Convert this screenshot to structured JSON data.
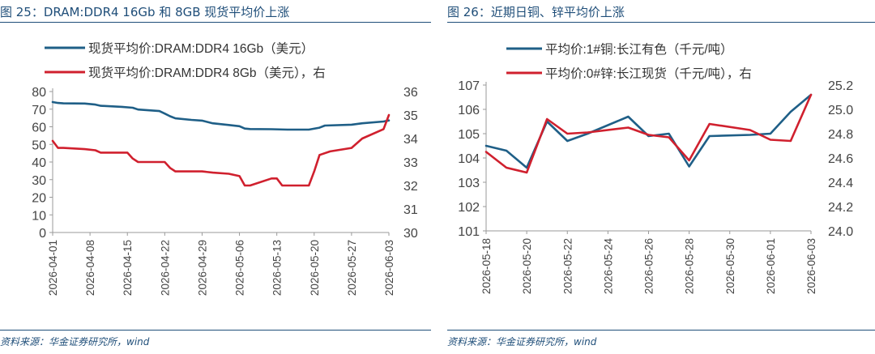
{
  "panel1": {
    "fig_title": "图 25：DRAM:DDR4 16Gb 和 8GB 现货平均价上涨",
    "source": "资料来源：华金证券研究所，wind"
  },
  "panel2": {
    "fig_title": "图 26：近期日铜、锌平均价上涨",
    "source": "资料来源：华金证券研究所，wind"
  },
  "colors": {
    "blue": "#1f5f87",
    "red": "#d0202e",
    "axis": "#9a9a9a",
    "title": "#1f4e79"
  },
  "chart_data": [
    {
      "type": "line",
      "title": "图 25：DRAM:DDR4 16Gb 和 8GB 现货平均价上涨",
      "legend_position": "top",
      "grid": false,
      "x_ticks": [
        "2026-04-01",
        "2026-04-08",
        "2026-04-15",
        "2026-04-22",
        "2026-04-29",
        "2026-05-06",
        "2026-05-13",
        "2026-05-20",
        "2026-05-27",
        "2026-06-03"
      ],
      "x_range": [
        "2026-04-01",
        "2026-06-03"
      ],
      "y_left": {
        "range": [
          0,
          80
        ],
        "ticks": [
          0,
          10,
          20,
          30,
          40,
          50,
          60,
          70,
          80
        ]
      },
      "y_right": {
        "range": [
          30,
          36
        ],
        "ticks": [
          30,
          31,
          32,
          33,
          34,
          35,
          36
        ]
      },
      "series": [
        {
          "name": "现货平均价:DRAM:DDR4 16Gb（美元）",
          "color": "#1f5f87",
          "axis": "left",
          "points": [
            [
              "2026-04-01",
              74
            ],
            [
              "2026-04-02",
              73.5
            ],
            [
              "2026-04-03",
              73.3
            ],
            [
              "2026-04-07",
              73.2
            ],
            [
              "2026-04-09",
              72.6
            ],
            [
              "2026-04-10",
              71.9
            ],
            [
              "2026-04-14",
              71.3
            ],
            [
              "2026-04-16",
              70.8
            ],
            [
              "2026-04-17",
              69.8
            ],
            [
              "2026-04-21",
              68.9
            ],
            [
              "2026-04-22",
              67.5
            ],
            [
              "2026-04-23",
              66.0
            ],
            [
              "2026-04-24",
              64.8
            ],
            [
              "2026-04-27",
              63.9
            ],
            [
              "2026-04-29",
              63.5
            ],
            [
              "2026-05-01",
              62.0
            ],
            [
              "2026-05-04",
              61.0
            ],
            [
              "2026-05-06",
              60.3
            ],
            [
              "2026-05-07",
              59.0
            ],
            [
              "2026-05-08",
              58.7
            ],
            [
              "2026-05-12",
              58.6
            ],
            [
              "2026-05-15",
              58.4
            ],
            [
              "2026-05-19",
              58.4
            ],
            [
              "2026-05-21",
              59.5
            ],
            [
              "2026-05-22",
              60.7
            ],
            [
              "2026-05-27",
              61.2
            ],
            [
              "2026-05-29",
              62.0
            ],
            [
              "2026-06-02",
              63.0
            ],
            [
              "2026-06-03",
              63.6
            ]
          ]
        },
        {
          "name": "现货平均价:DRAM:DDR4 8Gb（美元），右",
          "color": "#d0202e",
          "axis": "right",
          "points": [
            [
              "2026-04-01",
              33.9
            ],
            [
              "2026-04-02",
              33.6
            ],
            [
              "2026-04-03",
              33.6
            ],
            [
              "2026-04-07",
              33.55
            ],
            [
              "2026-04-09",
              33.5
            ],
            [
              "2026-04-10",
              33.4
            ],
            [
              "2026-04-14",
              33.4
            ],
            [
              "2026-04-15",
              33.4
            ],
            [
              "2026-04-16",
              33.15
            ],
            [
              "2026-04-17",
              33.0
            ],
            [
              "2026-04-21",
              33.0
            ],
            [
              "2026-04-22",
              33.0
            ],
            [
              "2026-04-23",
              32.75
            ],
            [
              "2026-04-24",
              32.6
            ],
            [
              "2026-04-27",
              32.6
            ],
            [
              "2026-04-29",
              32.6
            ],
            [
              "2026-05-01",
              32.55
            ],
            [
              "2026-05-04",
              32.5
            ],
            [
              "2026-05-06",
              32.4
            ],
            [
              "2026-05-07",
              32.0
            ],
            [
              "2026-05-08",
              32.0
            ],
            [
              "2026-05-12",
              32.3
            ],
            [
              "2026-05-13",
              32.3
            ],
            [
              "2026-05-14",
              32.0
            ],
            [
              "2026-05-19",
              32.0
            ],
            [
              "2026-05-20",
              32.6
            ],
            [
              "2026-05-21",
              33.3
            ],
            [
              "2026-05-23",
              33.45
            ],
            [
              "2026-05-27",
              33.6
            ],
            [
              "2026-05-29",
              34.0
            ],
            [
              "2026-06-02",
              34.4
            ],
            [
              "2026-06-03",
              35.0
            ]
          ]
        }
      ]
    },
    {
      "type": "line",
      "title": "图 26：近期日铜、锌平均价上涨",
      "legend_position": "top",
      "grid": false,
      "x_ticks": [
        "2026-05-18",
        "2026-05-20",
        "2026-05-22",
        "2026-05-24",
        "2026-05-26",
        "2026-05-28",
        "2026-05-30",
        "2026-06-01",
        "2026-06-03"
      ],
      "x_range": [
        "2026-05-18",
        "2026-06-03"
      ],
      "y_left": {
        "range": [
          101,
          107
        ],
        "ticks": [
          101,
          102,
          103,
          104,
          105,
          106,
          107
        ]
      },
      "y_right": {
        "range": [
          24.0,
          25.2
        ],
        "ticks": [
          "24.0",
          "24.2",
          "24.4",
          "24.6",
          "24.8",
          "25.0",
          "25.2"
        ]
      },
      "series": [
        {
          "name": "平均价:1#铜:长江有色（千元/吨）",
          "color": "#1f5f87",
          "axis": "left",
          "points": [
            [
              "2026-05-18",
              104.5
            ],
            [
              "2026-05-19",
              104.3
            ],
            [
              "2026-05-20",
              103.6
            ],
            [
              "2026-05-21",
              105.5
            ],
            [
              "2026-05-22",
              104.7
            ],
            [
              "2026-05-23",
              105.0
            ],
            [
              "2026-05-25",
              105.7
            ],
            [
              "2026-05-26",
              104.9
            ],
            [
              "2026-05-27",
              105.0
            ],
            [
              "2026-05-28",
              103.65
            ],
            [
              "2026-05-29",
              104.9
            ],
            [
              "2026-05-31",
              104.95
            ],
            [
              "2026-06-01",
              105.0
            ],
            [
              "2026-06-02",
              105.9
            ],
            [
              "2026-06-03",
              106.6
            ]
          ]
        },
        {
          "name": "平均价:0#锌:长江现货（千元/吨），右",
          "color": "#d0202e",
          "axis": "right",
          "points": [
            [
              "2026-05-18",
              24.65
            ],
            [
              "2026-05-19",
              24.52
            ],
            [
              "2026-05-20",
              24.48
            ],
            [
              "2026-05-21",
              24.92
            ],
            [
              "2026-05-22",
              24.8
            ],
            [
              "2026-05-23",
              24.81
            ],
            [
              "2026-05-25",
              24.85
            ],
            [
              "2026-05-26",
              24.79
            ],
            [
              "2026-05-27",
              24.77
            ],
            [
              "2026-05-28",
              24.58
            ],
            [
              "2026-05-29",
              24.88
            ],
            [
              "2026-05-31",
              24.83
            ],
            [
              "2026-06-01",
              24.75
            ],
            [
              "2026-06-02",
              24.74
            ],
            [
              "2026-06-03",
              25.12
            ]
          ]
        }
      ]
    }
  ]
}
